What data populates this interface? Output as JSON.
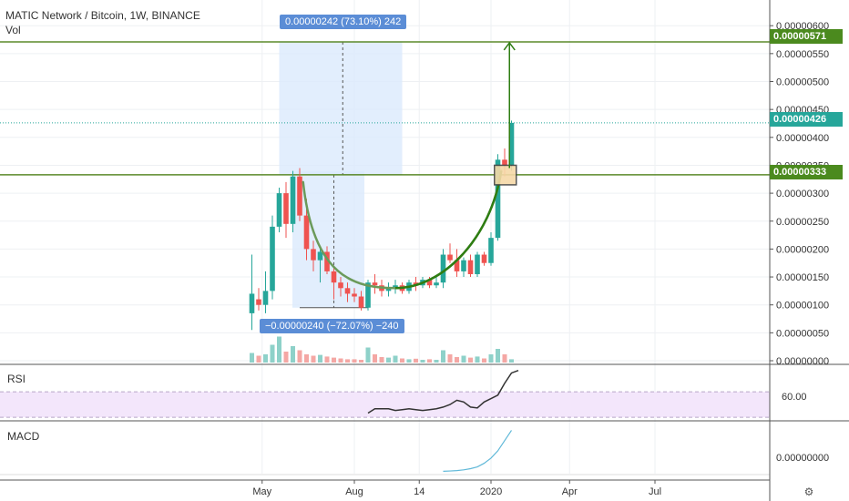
{
  "header": {
    "title": "MATIC Network / Bitcoin, 1W, BINANCE",
    "vol_label": "Vol"
  },
  "price_badges": {
    "target": "0.00000571",
    "current": "0.00000426",
    "support": "0.00000333"
  },
  "measure": {
    "up": "0.00000242 (73.10%) 242",
    "down": "−0.00000240 (−72.07%) −240"
  },
  "panes": {
    "rsi_label": "RSI",
    "rsi_tick": "60.00",
    "macd_label": "MACD",
    "macd_tick": "0.00000000"
  },
  "colors": {
    "up": "#26a69a",
    "down": "#ef5350",
    "up_vol": "#8ed1c9",
    "down_vol": "#f4a7a4",
    "green_line": "#5b8a2a",
    "current_line": "#26a69a",
    "rsi_band": "#f3e6fb",
    "rsi_line": "#333333",
    "macd_line": "#5fb8d8",
    "measure_fill": "#dbeafd",
    "cup": "#6b9a5a"
  },
  "chart_data": {
    "type": "candlestick",
    "title": "MATIC Network / Bitcoin, 1W, BINANCE",
    "y_ticks": [
      "0.00000600",
      "0.00000550",
      "0.00000500",
      "0.00000450",
      "0.00000400",
      "0.00000350",
      "0.00000300",
      "0.00000250",
      "0.00000200",
      "0.00000150",
      "0.00000100",
      "0.00000050",
      "0.00000000"
    ],
    "y_tick_values": [
      6.0,
      5.5,
      5.0,
      4.5,
      4.0,
      3.5,
      3.0,
      2.5,
      2.0,
      1.5,
      1.0,
      0.5,
      0.0
    ],
    "ylim": [
      0.0,
      6.2
    ],
    "y_unit_note": "x1e-6 BTC",
    "x_ticks": [
      "May",
      "Aug",
      "14",
      "2020",
      "Apr",
      "Jul"
    ],
    "x_tick_index": [
      1.5,
      15,
      24.5,
      35,
      46.5,
      59
    ],
    "candles": [
      {
        "o": 0.85,
        "h": 1.9,
        "l": 0.55,
        "c": 1.2
      },
      {
        "o": 1.1,
        "h": 1.3,
        "l": 0.9,
        "c": 1.0
      },
      {
        "o": 1.0,
        "h": 1.6,
        "l": 0.85,
        "c": 1.25
      },
      {
        "o": 1.25,
        "h": 2.6,
        "l": 1.1,
        "c": 2.4
      },
      {
        "o": 2.4,
        "h": 3.1,
        "l": 2.3,
        "c": 3.0
      },
      {
        "o": 3.0,
        "h": 3.2,
        "l": 2.2,
        "c": 2.45
      },
      {
        "o": 2.45,
        "h": 3.4,
        "l": 2.3,
        "c": 3.3
      },
      {
        "o": 3.3,
        "h": 3.45,
        "l": 2.5,
        "c": 2.6
      },
      {
        "o": 2.6,
        "h": 2.9,
        "l": 1.8,
        "c": 2.0
      },
      {
        "o": 2.0,
        "h": 2.15,
        "l": 1.6,
        "c": 1.8
      },
      {
        "o": 1.8,
        "h": 2.0,
        "l": 1.4,
        "c": 1.95
      },
      {
        "o": 1.95,
        "h": 2.05,
        "l": 1.55,
        "c": 1.6
      },
      {
        "o": 1.6,
        "h": 1.7,
        "l": 1.1,
        "c": 1.4
      },
      {
        "o": 1.4,
        "h": 1.5,
        "l": 1.15,
        "c": 1.3
      },
      {
        "o": 1.3,
        "h": 1.4,
        "l": 1.05,
        "c": 1.2
      },
      {
        "o": 1.2,
        "h": 1.3,
        "l": 1.05,
        "c": 1.15
      },
      {
        "o": 1.15,
        "h": 1.25,
        "l": 0.9,
        "c": 0.95
      },
      {
        "o": 0.95,
        "h": 1.45,
        "l": 0.9,
        "c": 1.4
      },
      {
        "o": 1.4,
        "h": 1.55,
        "l": 1.2,
        "c": 1.35
      },
      {
        "o": 1.35,
        "h": 1.45,
        "l": 1.15,
        "c": 1.25
      },
      {
        "o": 1.25,
        "h": 1.4,
        "l": 1.15,
        "c": 1.3
      },
      {
        "o": 1.3,
        "h": 1.45,
        "l": 1.2,
        "c": 1.35
      },
      {
        "o": 1.35,
        "h": 1.4,
        "l": 1.2,
        "c": 1.25
      },
      {
        "o": 1.25,
        "h": 1.45,
        "l": 1.2,
        "c": 1.4
      },
      {
        "o": 1.4,
        "h": 1.5,
        "l": 1.25,
        "c": 1.35
      },
      {
        "o": 1.35,
        "h": 1.5,
        "l": 1.3,
        "c": 1.45
      },
      {
        "o": 1.45,
        "h": 1.5,
        "l": 1.3,
        "c": 1.35
      },
      {
        "o": 1.35,
        "h": 1.5,
        "l": 1.3,
        "c": 1.4
      },
      {
        "o": 1.4,
        "h": 2.0,
        "l": 1.3,
        "c": 1.9
      },
      {
        "o": 1.9,
        "h": 2.1,
        "l": 1.75,
        "c": 1.8
      },
      {
        "o": 1.8,
        "h": 2.0,
        "l": 1.5,
        "c": 1.6
      },
      {
        "o": 1.6,
        "h": 1.85,
        "l": 1.5,
        "c": 1.8
      },
      {
        "o": 1.8,
        "h": 1.9,
        "l": 1.5,
        "c": 1.55
      },
      {
        "o": 1.55,
        "h": 1.95,
        "l": 1.5,
        "c": 1.9
      },
      {
        "o": 1.9,
        "h": 1.95,
        "l": 1.7,
        "c": 1.75
      },
      {
        "o": 1.75,
        "h": 2.3,
        "l": 1.7,
        "c": 2.2
      },
      {
        "o": 2.2,
        "h": 3.7,
        "l": 2.15,
        "c": 3.6
      },
      {
        "o": 3.6,
        "h": 3.8,
        "l": 3.3,
        "c": 3.5
      },
      {
        "o": 3.5,
        "h": 4.3,
        "l": 3.4,
        "c": 4.26
      }
    ],
    "volume": [
      0.35,
      0.25,
      0.3,
      0.65,
      0.95,
      0.4,
      0.6,
      0.45,
      0.3,
      0.25,
      0.28,
      0.22,
      0.18,
      0.15,
      0.12,
      0.12,
      0.1,
      0.55,
      0.3,
      0.2,
      0.18,
      0.25,
      0.15,
      0.12,
      0.14,
      0.1,
      0.12,
      0.1,
      0.45,
      0.3,
      0.2,
      0.25,
      0.18,
      0.22,
      0.15,
      0.3,
      0.5,
      0.3,
      0.12
    ],
    "support_level": 3.33,
    "target_level": 5.71,
    "current_level": 4.26,
    "rsi": {
      "start_index": 17,
      "values": [
        45,
        50,
        50,
        50,
        48,
        49,
        50,
        49,
        48,
        49,
        50,
        52,
        55,
        60,
        58,
        52,
        51,
        58,
        62,
        66,
        80,
        92,
        95
      ],
      "ylim": [
        38,
        100
      ],
      "band": [
        40,
        70
      ]
    },
    "macd": {
      "start_index": 28,
      "values": [
        -0.2,
        -0.18,
        -0.15,
        -0.1,
        -0.02,
        0.1,
        0.35,
        0.7,
        1.2,
        1.9,
        2.6
      ],
      "ylim": [
        -0.3,
        3.0
      ]
    }
  }
}
